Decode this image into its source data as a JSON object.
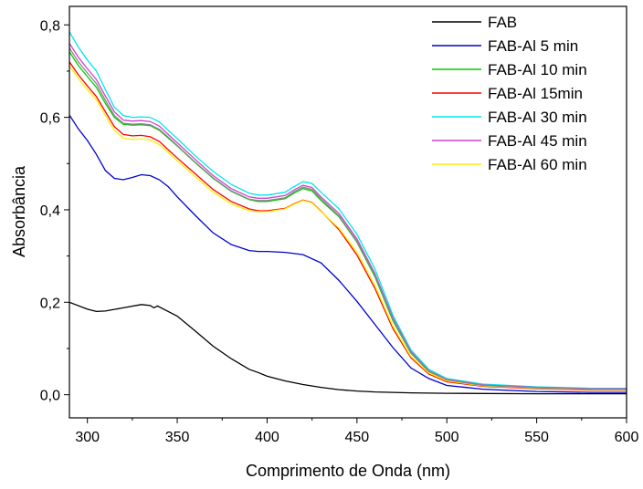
{
  "chart_data": {
    "type": "line",
    "title": "",
    "xlabel": "Comprimento de Onda (nm)",
    "ylabel": "Absorbância",
    "xlim": [
      290,
      600
    ],
    "ylim": [
      -0.05,
      0.84
    ],
    "xticks": [
      300,
      350,
      400,
      450,
      500,
      550,
      600
    ],
    "yticks": [
      0.0,
      0.2,
      0.4,
      0.6,
      0.8
    ],
    "ytick_labels": [
      "0,0",
      "0,2",
      "0,4",
      "0,6",
      "0,8"
    ],
    "grid": false,
    "legend_position": "top-right",
    "series": [
      {
        "name": "FAB",
        "color": "#000000",
        "points": [
          [
            290,
            0.2
          ],
          [
            300,
            0.185
          ],
          [
            305,
            0.18
          ],
          [
            310,
            0.181
          ],
          [
            320,
            0.188
          ],
          [
            330,
            0.195
          ],
          [
            335,
            0.193
          ],
          [
            337,
            0.188
          ],
          [
            339,
            0.192
          ],
          [
            345,
            0.18
          ],
          [
            350,
            0.17
          ],
          [
            360,
            0.138
          ],
          [
            370,
            0.105
          ],
          [
            380,
            0.078
          ],
          [
            390,
            0.055
          ],
          [
            395,
            0.048
          ],
          [
            400,
            0.04
          ],
          [
            410,
            0.03
          ],
          [
            420,
            0.022
          ],
          [
            430,
            0.016
          ],
          [
            440,
            0.011
          ],
          [
            450,
            0.008
          ],
          [
            460,
            0.006
          ],
          [
            480,
            0.004
          ],
          [
            500,
            0.003
          ],
          [
            550,
            0.002
          ],
          [
            600,
            0.002
          ]
        ]
      },
      {
        "name": "FAB-Al 5 min",
        "color": "#0000cc",
        "points": [
          [
            290,
            0.605
          ],
          [
            295,
            0.575
          ],
          [
            300,
            0.55
          ],
          [
            305,
            0.52
          ],
          [
            310,
            0.485
          ],
          [
            315,
            0.468
          ],
          [
            320,
            0.465
          ],
          [
            325,
            0.47
          ],
          [
            330,
            0.476
          ],
          [
            335,
            0.474
          ],
          [
            340,
            0.465
          ],
          [
            345,
            0.45
          ],
          [
            350,
            0.428
          ],
          [
            360,
            0.388
          ],
          [
            370,
            0.35
          ],
          [
            380,
            0.325
          ],
          [
            390,
            0.312
          ],
          [
            395,
            0.31
          ],
          [
            400,
            0.31
          ],
          [
            410,
            0.308
          ],
          [
            420,
            0.303
          ],
          [
            430,
            0.285
          ],
          [
            440,
            0.247
          ],
          [
            450,
            0.202
          ],
          [
            460,
            0.152
          ],
          [
            470,
            0.102
          ],
          [
            480,
            0.058
          ],
          [
            490,
            0.035
          ],
          [
            500,
            0.02
          ],
          [
            520,
            0.012
          ],
          [
            550,
            0.007
          ],
          [
            580,
            0.005
          ],
          [
            600,
            0.005
          ]
        ]
      },
      {
        "name": "FAB-Al 10 min",
        "color": "#00cc00",
        "points": [
          [
            290,
            0.742
          ],
          [
            295,
            0.712
          ],
          [
            300,
            0.688
          ],
          [
            305,
            0.665
          ],
          [
            310,
            0.63
          ],
          [
            315,
            0.6
          ],
          [
            320,
            0.585
          ],
          [
            325,
            0.583
          ],
          [
            330,
            0.584
          ],
          [
            335,
            0.582
          ],
          [
            340,
            0.572
          ],
          [
            345,
            0.555
          ],
          [
            350,
            0.538
          ],
          [
            360,
            0.502
          ],
          [
            370,
            0.468
          ],
          [
            380,
            0.44
          ],
          [
            390,
            0.422
          ],
          [
            395,
            0.418
          ],
          [
            400,
            0.418
          ],
          [
            410,
            0.424
          ],
          [
            415,
            0.436
          ],
          [
            420,
            0.446
          ],
          [
            425,
            0.441
          ],
          [
            430,
            0.42
          ],
          [
            440,
            0.385
          ],
          [
            450,
            0.33
          ],
          [
            460,
            0.255
          ],
          [
            470,
            0.16
          ],
          [
            480,
            0.09
          ],
          [
            490,
            0.05
          ],
          [
            500,
            0.032
          ],
          [
            520,
            0.02
          ],
          [
            550,
            0.015
          ],
          [
            580,
            0.012
          ],
          [
            600,
            0.012
          ]
        ]
      },
      {
        "name": "FAB-Al 15min",
        "color": "#ff0000",
        "points": [
          [
            290,
            0.72
          ],
          [
            295,
            0.692
          ],
          [
            300,
            0.668
          ],
          [
            305,
            0.645
          ],
          [
            310,
            0.612
          ],
          [
            315,
            0.58
          ],
          [
            320,
            0.563
          ],
          [
            325,
            0.56
          ],
          [
            330,
            0.561
          ],
          [
            335,
            0.558
          ],
          [
            340,
            0.548
          ],
          [
            345,
            0.53
          ],
          [
            350,
            0.512
          ],
          [
            360,
            0.478
          ],
          [
            370,
            0.444
          ],
          [
            380,
            0.418
          ],
          [
            390,
            0.402
          ],
          [
            395,
            0.398
          ],
          [
            400,
            0.398
          ],
          [
            410,
            0.403
          ],
          [
            415,
            0.413
          ],
          [
            420,
            0.421
          ],
          [
            425,
            0.416
          ],
          [
            430,
            0.397
          ],
          [
            440,
            0.357
          ],
          [
            450,
            0.302
          ],
          [
            460,
            0.23
          ],
          [
            470,
            0.143
          ],
          [
            480,
            0.08
          ],
          [
            490,
            0.045
          ],
          [
            500,
            0.028
          ],
          [
            520,
            0.018
          ],
          [
            550,
            0.013
          ],
          [
            580,
            0.01
          ],
          [
            600,
            0.01
          ]
        ]
      },
      {
        "name": "FAB-Al 30 min",
        "color": "#00e5ee",
        "points": [
          [
            290,
            0.785
          ],
          [
            295,
            0.752
          ],
          [
            300,
            0.724
          ],
          [
            305,
            0.7
          ],
          [
            310,
            0.66
          ],
          [
            315,
            0.622
          ],
          [
            320,
            0.604
          ],
          [
            325,
            0.6
          ],
          [
            330,
            0.601
          ],
          [
            335,
            0.6
          ],
          [
            340,
            0.59
          ],
          [
            345,
            0.572
          ],
          [
            350,
            0.554
          ],
          [
            360,
            0.517
          ],
          [
            370,
            0.483
          ],
          [
            380,
            0.455
          ],
          [
            390,
            0.436
          ],
          [
            395,
            0.432
          ],
          [
            400,
            0.432
          ],
          [
            410,
            0.438
          ],
          [
            415,
            0.45
          ],
          [
            420,
            0.461
          ],
          [
            425,
            0.457
          ],
          [
            430,
            0.438
          ],
          [
            440,
            0.402
          ],
          [
            450,
            0.347
          ],
          [
            460,
            0.272
          ],
          [
            470,
            0.172
          ],
          [
            480,
            0.097
          ],
          [
            490,
            0.055
          ],
          [
            500,
            0.035
          ],
          [
            520,
            0.023
          ],
          [
            550,
            0.017
          ],
          [
            580,
            0.014
          ],
          [
            600,
            0.014
          ]
        ]
      },
      {
        "name": "FAB-Al 45 min",
        "color": "#cc44cc",
        "points": [
          [
            290,
            0.76
          ],
          [
            295,
            0.73
          ],
          [
            300,
            0.705
          ],
          [
            305,
            0.682
          ],
          [
            310,
            0.646
          ],
          [
            315,
            0.612
          ],
          [
            320,
            0.594
          ],
          [
            325,
            0.592
          ],
          [
            330,
            0.593
          ],
          [
            335,
            0.591
          ],
          [
            340,
            0.581
          ],
          [
            345,
            0.563
          ],
          [
            350,
            0.545
          ],
          [
            360,
            0.509
          ],
          [
            370,
            0.474
          ],
          [
            380,
            0.446
          ],
          [
            390,
            0.428
          ],
          [
            395,
            0.425
          ],
          [
            400,
            0.425
          ],
          [
            410,
            0.431
          ],
          [
            415,
            0.443
          ],
          [
            420,
            0.453
          ],
          [
            425,
            0.448
          ],
          [
            430,
            0.428
          ],
          [
            440,
            0.392
          ],
          [
            450,
            0.337
          ],
          [
            460,
            0.262
          ],
          [
            470,
            0.166
          ],
          [
            480,
            0.093
          ],
          [
            490,
            0.052
          ],
          [
            500,
            0.033
          ],
          [
            520,
            0.021
          ],
          [
            550,
            0.016
          ],
          [
            580,
            0.013
          ],
          [
            600,
            0.013
          ]
        ]
      },
      {
        "name": "FAB-Al 60 min",
        "color": "#ffee00",
        "points": [
          [
            290,
            0.712
          ],
          [
            295,
            0.684
          ],
          [
            300,
            0.66
          ],
          [
            305,
            0.638
          ],
          [
            310,
            0.604
          ],
          [
            315,
            0.572
          ],
          [
            320,
            0.555
          ],
          [
            325,
            0.552
          ],
          [
            330,
            0.553
          ],
          [
            335,
            0.551
          ],
          [
            340,
            0.541
          ],
          [
            345,
            0.524
          ],
          [
            350,
            0.506
          ],
          [
            360,
            0.472
          ],
          [
            370,
            0.438
          ],
          [
            380,
            0.413
          ],
          [
            390,
            0.398
          ],
          [
            395,
            0.396
          ],
          [
            400,
            0.396
          ],
          [
            410,
            0.402
          ],
          [
            415,
            0.412
          ],
          [
            420,
            0.42
          ],
          [
            425,
            0.415
          ],
          [
            430,
            0.396
          ],
          [
            440,
            0.36
          ],
          [
            450,
            0.308
          ],
          [
            460,
            0.236
          ],
          [
            470,
            0.148
          ],
          [
            480,
            0.083
          ],
          [
            490,
            0.047
          ],
          [
            500,
            0.03
          ],
          [
            520,
            0.019
          ],
          [
            550,
            0.014
          ],
          [
            580,
            0.011
          ],
          [
            600,
            0.011
          ]
        ]
      },
      {
        "name": "",
        "color": "#888888",
        "points": [
          [
            290,
            0.75
          ],
          [
            295,
            0.72
          ],
          [
            300,
            0.696
          ],
          [
            305,
            0.673
          ],
          [
            310,
            0.637
          ],
          [
            315,
            0.604
          ],
          [
            320,
            0.587
          ],
          [
            325,
            0.585
          ],
          [
            330,
            0.586
          ],
          [
            335,
            0.584
          ],
          [
            340,
            0.574
          ],
          [
            345,
            0.557
          ],
          [
            350,
            0.539
          ],
          [
            360,
            0.503
          ],
          [
            370,
            0.469
          ],
          [
            380,
            0.441
          ],
          [
            390,
            0.423
          ],
          [
            395,
            0.42
          ],
          [
            400,
            0.42
          ],
          [
            410,
            0.426
          ],
          [
            415,
            0.439
          ],
          [
            420,
            0.449
          ],
          [
            425,
            0.444
          ],
          [
            430,
            0.424
          ],
          [
            440,
            0.387
          ],
          [
            450,
            0.332
          ],
          [
            460,
            0.258
          ],
          [
            470,
            0.163
          ],
          [
            480,
            0.091
          ],
          [
            490,
            0.051
          ],
          [
            500,
            0.032
          ],
          [
            520,
            0.02
          ],
          [
            550,
            0.015
          ],
          [
            580,
            0.012
          ],
          [
            600,
            0.012
          ]
        ]
      }
    ]
  }
}
